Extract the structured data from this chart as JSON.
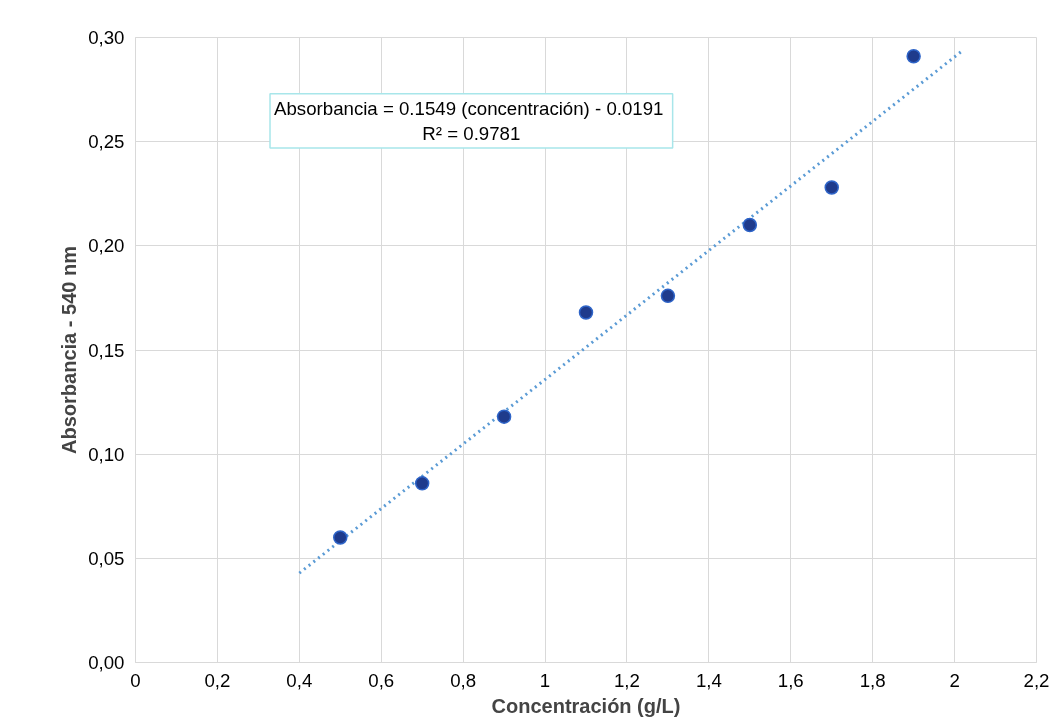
{
  "chart_data": {
    "type": "scatter",
    "xlabel": "Concentración (g/L)",
    "ylabel": "Absorbancia - 540 nm",
    "x": [
      0.5,
      0.7,
      0.9,
      1.1,
      1.3,
      1.5,
      1.7,
      1.9
    ],
    "series": [
      {
        "color": "#1f3b8c",
        "values": [
          0.06,
          0.086,
          0.118,
          0.168,
          0.176,
          0.21,
          0.228,
          0.291
        ]
      },
      {
        "type": "line",
        "color": "#5b9bd5",
        "line_style": "dotted",
        "marker": "none",
        "x": [
          0.4,
          2.02
        ],
        "values": [
          0.0429,
          0.2938
        ]
      }
    ],
    "annotations": [
      "Absorbancia = 0.1549 (concentración)  - 0.0191",
      "R² = 0.9781"
    ],
    "xlim": [
      0,
      2.2
    ],
    "xticks": [
      {
        "value": 0,
        "label": "0"
      },
      {
        "value": 0.2,
        "label": "0,2"
      },
      {
        "value": 0.4,
        "label": "0,4"
      },
      {
        "value": 0.6,
        "label": "0,6"
      },
      {
        "value": 0.8,
        "label": "0,8"
      },
      {
        "value": 1,
        "label": "1"
      },
      {
        "value": 1.2,
        "label": "1,2"
      },
      {
        "value": 1.4,
        "label": "1,4"
      },
      {
        "value": 1.6,
        "label": "1,6"
      },
      {
        "value": 1.8,
        "label": "1,8"
      },
      {
        "value": 2,
        "label": "2"
      },
      {
        "value": 2.2,
        "label": "2,2"
      }
    ],
    "ylim": [
      0,
      0.3
    ],
    "yticks": [
      {
        "value": 0,
        "label": "0,00"
      },
      {
        "value": 0.05,
        "label": "0,05"
      },
      {
        "value": 0.1,
        "label": "0,10"
      },
      {
        "value": 0.15,
        "label": "0,15"
      },
      {
        "value": 0.2,
        "label": "0,20"
      },
      {
        "value": 0.25,
        "label": "0,25"
      },
      {
        "value": 0.3,
        "label": "0,30"
      }
    ],
    "grid": true,
    "marker": "circle"
  }
}
